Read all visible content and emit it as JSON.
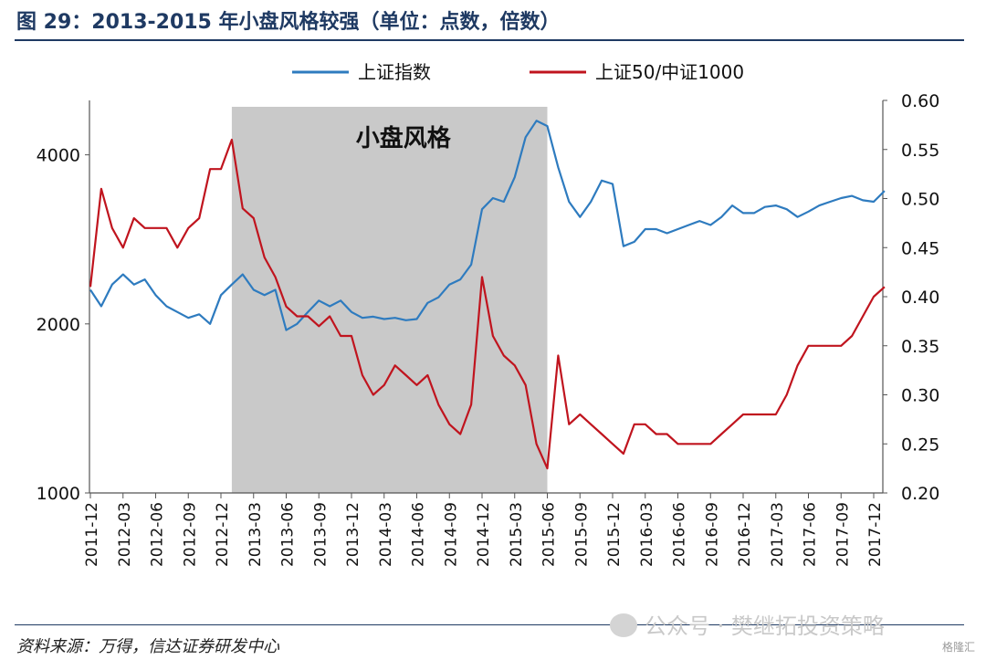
{
  "title": "图 29：2013-2015 年小盘风格较强（单位：点数，倍数）",
  "source": "资料来源：万得，信达证券研发中心",
  "watermark": "公众号 · 樊继拓投资策略",
  "badge": "格隆汇",
  "chart_data": {
    "type": "line",
    "legend": [
      "上证指数",
      "上证50/中证1000"
    ],
    "legend_position": "top-center",
    "shaded_region": {
      "label": "小盘风格",
      "start": "2013-01",
      "end": "2015-06"
    },
    "x_ticks": [
      "2011-12",
      "2012-03",
      "2012-06",
      "2012-09",
      "2012-12",
      "2013-03",
      "2013-06",
      "2013-09",
      "2013-12",
      "2014-03",
      "2014-06",
      "2014-09",
      "2014-12",
      "2015-03",
      "2015-06",
      "2015-09",
      "2015-12",
      "2016-03",
      "2016-06",
      "2016-09",
      "2016-12",
      "2017-03",
      "2017-06",
      "2017-09",
      "2017-12"
    ],
    "left_axis": {
      "scale": "log",
      "ticks": [
        1000,
        2000,
        4000
      ],
      "range": [
        1000,
        5000
      ]
    },
    "right_axis": {
      "ticks": [
        0.2,
        0.25,
        0.3,
        0.35,
        0.4,
        0.45,
        0.5,
        0.55,
        0.6
      ],
      "range": [
        0.2,
        0.6
      ]
    },
    "grid": false,
    "series": [
      {
        "name": "上证指数",
        "color": "#2e7bbf",
        "axis": "left",
        "points": [
          [
            "2011-12",
            2300
          ],
          [
            "2012-01",
            2150
          ],
          [
            "2012-02",
            2350
          ],
          [
            "2012-03",
            2450
          ],
          [
            "2012-04",
            2350
          ],
          [
            "2012-05",
            2400
          ],
          [
            "2012-06",
            2250
          ],
          [
            "2012-07",
            2150
          ],
          [
            "2012-08",
            2100
          ],
          [
            "2012-09",
            2050
          ],
          [
            "2012-10",
            2080
          ],
          [
            "2012-11",
            2000
          ],
          [
            "2012-12",
            2250
          ],
          [
            "2013-01",
            2350
          ],
          [
            "2013-02",
            2450
          ],
          [
            "2013-03",
            2300
          ],
          [
            "2013-04",
            2250
          ],
          [
            "2013-05",
            2300
          ],
          [
            "2013-06",
            1950
          ],
          [
            "2013-07",
            2000
          ],
          [
            "2013-08",
            2100
          ],
          [
            "2013-09",
            2200
          ],
          [
            "2013-10",
            2150
          ],
          [
            "2013-11",
            2200
          ],
          [
            "2013-12",
            2100
          ],
          [
            "2014-01",
            2050
          ],
          [
            "2014-02",
            2060
          ],
          [
            "2014-03",
            2040
          ],
          [
            "2014-04",
            2050
          ],
          [
            "2014-05",
            2030
          ],
          [
            "2014-06",
            2040
          ],
          [
            "2014-07",
            2180
          ],
          [
            "2014-08",
            2230
          ],
          [
            "2014-09",
            2350
          ],
          [
            "2014-10",
            2400
          ],
          [
            "2014-11",
            2550
          ],
          [
            "2014-12",
            3200
          ],
          [
            "2015-01",
            3350
          ],
          [
            "2015-02",
            3300
          ],
          [
            "2015-03",
            3650
          ],
          [
            "2015-04",
            4300
          ],
          [
            "2015-05",
            4600
          ],
          [
            "2015-06",
            4500
          ],
          [
            "2015-07",
            3800
          ],
          [
            "2015-08",
            3300
          ],
          [
            "2015-09",
            3100
          ],
          [
            "2015-10",
            3300
          ],
          [
            "2015-11",
            3600
          ],
          [
            "2015-12",
            3550
          ],
          [
            "2016-01",
            2750
          ],
          [
            "2016-02",
            2800
          ],
          [
            "2016-03",
            2950
          ],
          [
            "2016-04",
            2950
          ],
          [
            "2016-05",
            2900
          ],
          [
            "2016-06",
            2950
          ],
          [
            "2016-07",
            3000
          ],
          [
            "2016-08",
            3050
          ],
          [
            "2016-09",
            3000
          ],
          [
            "2016-10",
            3100
          ],
          [
            "2016-11",
            3250
          ],
          [
            "2016-12",
            3150
          ],
          [
            "2017-01",
            3150
          ],
          [
            "2017-02",
            3230
          ],
          [
            "2017-03",
            3250
          ],
          [
            "2017-04",
            3200
          ],
          [
            "2017-05",
            3100
          ],
          [
            "2017-06",
            3170
          ],
          [
            "2017-07",
            3250
          ],
          [
            "2017-08",
            3300
          ],
          [
            "2017-09",
            3350
          ],
          [
            "2017-10",
            3380
          ],
          [
            "2017-11",
            3320
          ],
          [
            "2017-12",
            3300
          ],
          [
            "2018-01",
            3450
          ]
        ]
      },
      {
        "name": "上证50/中证1000",
        "color": "#c0141e",
        "axis": "right",
        "points": [
          [
            "2011-12",
            0.41
          ],
          [
            "2012-01",
            0.51
          ],
          [
            "2012-02",
            0.47
          ],
          [
            "2012-03",
            0.45
          ],
          [
            "2012-04",
            0.48
          ],
          [
            "2012-05",
            0.47
          ],
          [
            "2012-06",
            0.47
          ],
          [
            "2012-07",
            0.47
          ],
          [
            "2012-08",
            0.45
          ],
          [
            "2012-09",
            0.47
          ],
          [
            "2012-10",
            0.48
          ],
          [
            "2012-11",
            0.53
          ],
          [
            "2012-12",
            0.53
          ],
          [
            "2013-01",
            0.56
          ],
          [
            "2013-02",
            0.49
          ],
          [
            "2013-03",
            0.48
          ],
          [
            "2013-04",
            0.44
          ],
          [
            "2013-05",
            0.42
          ],
          [
            "2013-06",
            0.39
          ],
          [
            "2013-07",
            0.38
          ],
          [
            "2013-08",
            0.38
          ],
          [
            "2013-09",
            0.37
          ],
          [
            "2013-10",
            0.38
          ],
          [
            "2013-11",
            0.36
          ],
          [
            "2013-12",
            0.36
          ],
          [
            "2014-01",
            0.32
          ],
          [
            "2014-02",
            0.3
          ],
          [
            "2014-03",
            0.31
          ],
          [
            "2014-04",
            0.33
          ],
          [
            "2014-05",
            0.32
          ],
          [
            "2014-06",
            0.31
          ],
          [
            "2014-07",
            0.32
          ],
          [
            "2014-08",
            0.29
          ],
          [
            "2014-09",
            0.27
          ],
          [
            "2014-10",
            0.26
          ],
          [
            "2014-11",
            0.29
          ],
          [
            "2014-12",
            0.42
          ],
          [
            "2015-01",
            0.36
          ],
          [
            "2015-02",
            0.34
          ],
          [
            "2015-03",
            0.33
          ],
          [
            "2015-04",
            0.31
          ],
          [
            "2015-05",
            0.25
          ],
          [
            "2015-06",
            0.225
          ],
          [
            "2015-07",
            0.34
          ],
          [
            "2015-08",
            0.27
          ],
          [
            "2015-09",
            0.28
          ],
          [
            "2015-10",
            0.27
          ],
          [
            "2015-11",
            0.26
          ],
          [
            "2015-12",
            0.25
          ],
          [
            "2016-01",
            0.24
          ],
          [
            "2016-02",
            0.27
          ],
          [
            "2016-03",
            0.27
          ],
          [
            "2016-04",
            0.26
          ],
          [
            "2016-05",
            0.26
          ],
          [
            "2016-06",
            0.25
          ],
          [
            "2016-07",
            0.25
          ],
          [
            "2016-08",
            0.25
          ],
          [
            "2016-09",
            0.25
          ],
          [
            "2016-10",
            0.26
          ],
          [
            "2016-11",
            0.27
          ],
          [
            "2016-12",
            0.28
          ],
          [
            "2017-01",
            0.28
          ],
          [
            "2017-02",
            0.28
          ],
          [
            "2017-03",
            0.28
          ],
          [
            "2017-04",
            0.3
          ],
          [
            "2017-05",
            0.33
          ],
          [
            "2017-06",
            0.35
          ],
          [
            "2017-07",
            0.35
          ],
          [
            "2017-08",
            0.35
          ],
          [
            "2017-09",
            0.35
          ],
          [
            "2017-10",
            0.36
          ],
          [
            "2017-11",
            0.38
          ],
          [
            "2017-12",
            0.4
          ],
          [
            "2018-01",
            0.41
          ]
        ]
      }
    ]
  }
}
